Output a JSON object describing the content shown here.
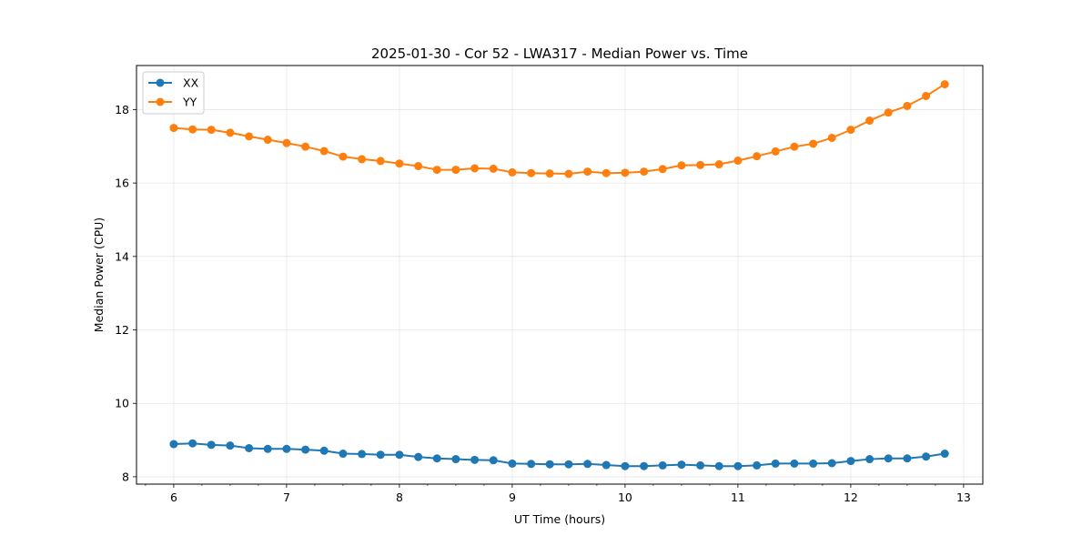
{
  "chart_data": {
    "type": "line",
    "title": "2025-01-30 - Cor 52 - LWA317 - Median Power vs. Time",
    "xlabel": "UT Time (hours)",
    "ylabel": "Median Power (CPU)",
    "xlim": [
      5.67,
      13.17
    ],
    "ylim": [
      7.8,
      19.2
    ],
    "xticks": [
      6,
      7,
      8,
      9,
      10,
      11,
      12,
      13
    ],
    "xticks_minor": [
      5.75,
      6.25,
      6.5,
      6.75,
      7.25,
      7.5,
      7.75,
      8.25,
      8.5,
      8.75,
      9.25,
      9.5,
      9.75,
      10.25,
      10.5,
      10.75,
      11.25,
      11.5,
      11.75,
      12.25,
      12.5,
      12.75,
      13.25
    ],
    "yticks": [
      8,
      10,
      12,
      14,
      16,
      18
    ],
    "grid": true,
    "legend_position": "upper-left",
    "x": [
      6.0,
      6.167,
      6.333,
      6.5,
      6.667,
      6.833,
      7.0,
      7.167,
      7.333,
      7.5,
      7.667,
      7.833,
      8.0,
      8.167,
      8.333,
      8.5,
      8.667,
      8.833,
      9.0,
      9.167,
      9.333,
      9.5,
      9.667,
      9.833,
      10.0,
      10.167,
      10.333,
      10.5,
      10.667,
      10.833,
      11.0,
      11.167,
      11.333,
      11.5,
      11.667,
      11.833,
      12.0,
      12.167,
      12.333,
      12.5,
      12.667,
      12.833
    ],
    "series": [
      {
        "name": "XX",
        "color": "#1f77b4",
        "values": [
          8.89,
          8.91,
          8.87,
          8.85,
          8.78,
          8.76,
          8.76,
          8.74,
          8.71,
          8.63,
          8.62,
          8.6,
          8.6,
          8.54,
          8.5,
          8.48,
          8.46,
          8.45,
          8.36,
          8.35,
          8.34,
          8.34,
          8.35,
          8.32,
          8.29,
          8.29,
          8.31,
          8.33,
          8.31,
          8.29,
          8.29,
          8.31,
          8.36,
          8.36,
          8.36,
          8.37,
          8.43,
          8.48,
          8.5,
          8.5,
          8.55,
          8.63
        ]
      },
      {
        "name": "YY",
        "color": "#ff7f0e",
        "values": [
          17.5,
          17.46,
          17.45,
          17.37,
          17.27,
          17.18,
          17.09,
          16.99,
          16.87,
          16.72,
          16.65,
          16.6,
          16.53,
          16.46,
          16.36,
          16.36,
          16.4,
          16.39,
          16.29,
          16.27,
          16.26,
          16.25,
          16.31,
          16.27,
          16.28,
          16.31,
          16.38,
          16.48,
          16.49,
          16.51,
          16.61,
          16.73,
          16.86,
          16.99,
          17.07,
          17.23,
          17.45,
          17.7,
          17.92,
          18.1,
          18.37,
          18.69
        ]
      }
    ]
  }
}
